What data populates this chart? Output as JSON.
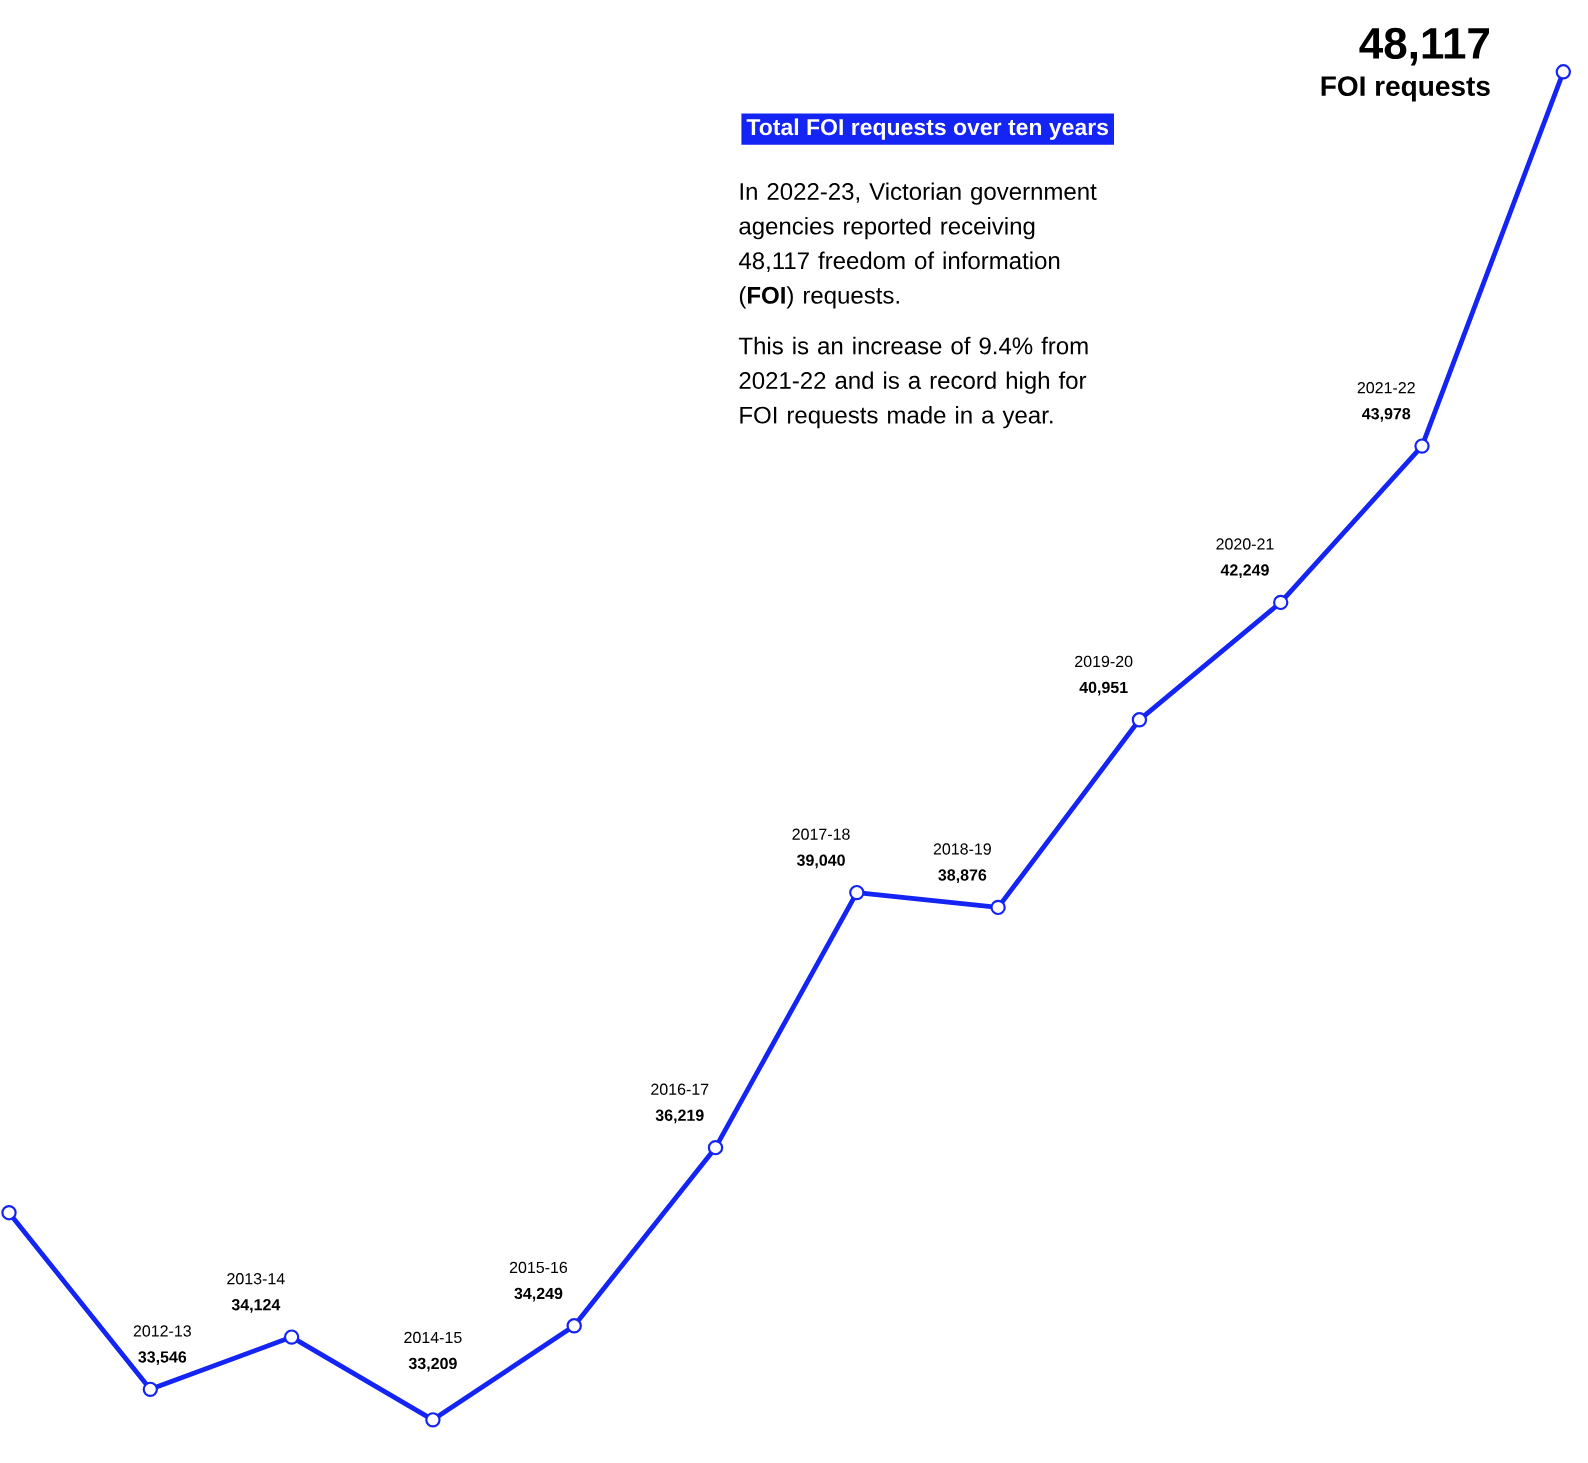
{
  "chart_data": {
    "type": "line",
    "title": "Total FOI requests over ten years",
    "annotations": [
      "In 2022-23, Victorian government agencies reported receiving 48,117 freedom of information (**FOI**) requests.",
      "This is an increase of 9.4% from 2021-22 and is a record high for FOI requests made in a year.",
      "FOI requests"
    ],
    "categories": [
      null,
      "2012-13",
      "2013-14",
      "2014-15",
      "2015-16",
      "2016-17",
      "2017-18",
      "2018-19",
      "2019-20",
      "2020-21",
      "2021-22",
      null
    ],
    "series": [
      {
        "color": "#1424f5",
        "values": [
          35500,
          33546,
          34124,
          33209,
          34249,
          36219,
          39040,
          38876,
          40951,
          42249,
          43978,
          48117
        ],
        "value_labels": [
          null,
          "33,546",
          "34,124",
          "33,209",
          "34,249",
          "36,219",
          "39,040",
          "38,876",
          "40,951",
          "42,249",
          "43,978",
          "48,117"
        ]
      }
    ],
    "marker": "circle",
    "line_style": "solid"
  }
}
